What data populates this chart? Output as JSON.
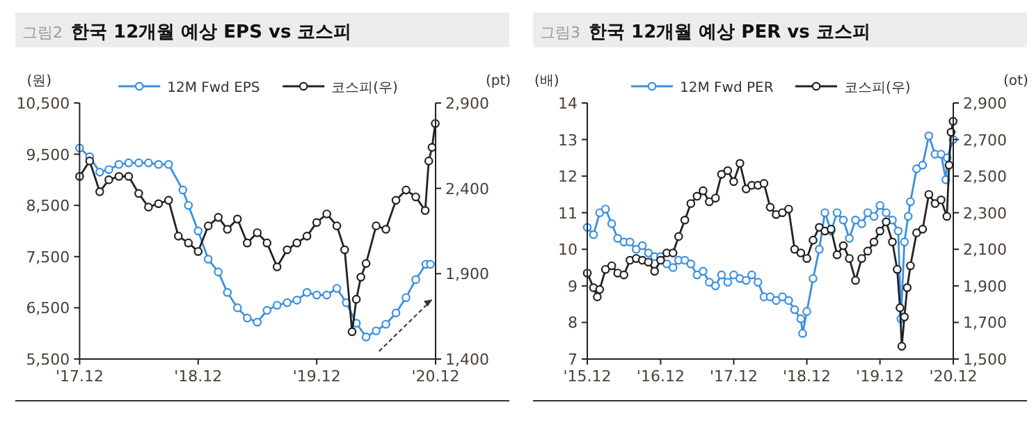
{
  "chart_data": [
    {
      "type": "line",
      "title": "그림2 한국 12개월 예상 EPS vs 코스피",
      "ylabel": "(원)",
      "y2label": "(pt)",
      "legend": "top",
      "marker": "circle",
      "xlim": [
        "2017-12-01",
        "2020-12-01"
      ],
      "xticks": [
        {
          "value": "2017-12-01",
          "label": "'17.12"
        },
        {
          "value": "2018-12-01",
          "label": "'18.12"
        },
        {
          "value": "2019-12-01",
          "label": "'19.12"
        },
        {
          "value": "2020-12-01",
          "label": "'20.12"
        }
      ],
      "ylim": [
        5500,
        10500
      ],
      "yticks": [
        {
          "value": 5500,
          "label": "5,500"
        },
        {
          "value": 6500,
          "label": "6,500"
        },
        {
          "value": 7500,
          "label": "7,500"
        },
        {
          "value": 8500,
          "label": "8,500"
        },
        {
          "value": 9500,
          "label": "9,500"
        },
        {
          "value": 10500,
          "label": "10,500"
        }
      ],
      "y2lim": [
        1400,
        2900
      ],
      "y2ticks": [
        {
          "value": 1400,
          "label": "1,400"
        },
        {
          "value": 1900,
          "label": "1,900"
        },
        {
          "value": 2400,
          "label": "2,400"
        },
        {
          "value": 2900,
          "label": "2,900"
        }
      ],
      "series": [
        {
          "name": "12M Fwd EPS",
          "color": "#3b8fe0",
          "x": [
            "2017-12-01",
            "2018-01-01",
            "2018-02-01",
            "2018-03-01",
            "2018-04-01",
            "2018-05-01",
            "2018-06-01",
            "2018-07-01",
            "2018-08-01",
            "2018-09-01",
            "2018-10-15",
            "2018-11-01",
            "2018-12-01",
            "2019-01-01",
            "2019-02-01",
            "2019-03-01",
            "2019-04-01",
            "2019-05-01",
            "2019-06-01",
            "2019-07-01",
            "2019-08-01",
            "2019-09-01",
            "2019-10-01",
            "2019-11-01",
            "2019-12-01",
            "2020-01-01",
            "2020-02-01",
            "2020-03-01",
            "2020-04-01",
            "2020-05-01",
            "2020-06-01",
            "2020-07-01",
            "2020-08-01",
            "2020-09-01",
            "2020-10-01",
            "2020-11-01",
            "2020-11-15"
          ],
          "values": [
            9620,
            9450,
            9150,
            9200,
            9300,
            9330,
            9330,
            9330,
            9300,
            9300,
            8800,
            8500,
            8000,
            7450,
            7200,
            6800,
            6500,
            6300,
            6220,
            6450,
            6550,
            6600,
            6650,
            6800,
            6750,
            6750,
            6880,
            6600,
            6200,
            5930,
            6050,
            6180,
            6400,
            6700,
            7050,
            7350,
            7350
          ]
        },
        {
          "name": "코스피(우)",
          "color": "#222222",
          "axis": "y2",
          "x": [
            "2017-12-01",
            "2018-01-01",
            "2018-02-01",
            "2018-03-01",
            "2018-04-01",
            "2018-05-01",
            "2018-06-01",
            "2018-07-01",
            "2018-08-01",
            "2018-09-01",
            "2018-10-01",
            "2018-11-01",
            "2018-12-01",
            "2019-01-01",
            "2019-02-01",
            "2019-03-01",
            "2019-04-01",
            "2019-05-01",
            "2019-06-01",
            "2019-07-01",
            "2019-08-01",
            "2019-09-01",
            "2019-10-01",
            "2019-11-01",
            "2019-12-01",
            "2020-01-01",
            "2020-02-01",
            "2020-02-25",
            "2020-03-19",
            "2020-04-01",
            "2020-04-15",
            "2020-05-01",
            "2020-06-01",
            "2020-07-01",
            "2020-08-01",
            "2020-09-01",
            "2020-10-01",
            "2020-10-30",
            "2020-11-10",
            "2020-11-20",
            "2020-11-30"
          ],
          "values": [
            2470,
            2560,
            2380,
            2450,
            2470,
            2470,
            2370,
            2290,
            2310,
            2330,
            2120,
            2080,
            2030,
            2180,
            2230,
            2160,
            2220,
            2080,
            2140,
            2080,
            1940,
            2040,
            2080,
            2120,
            2200,
            2250,
            2180,
            2040,
            1560,
            1750,
            1880,
            1960,
            2180,
            2160,
            2330,
            2390,
            2350,
            2270,
            2560,
            2640,
            2780
          ]
        }
      ]
    },
    {
      "type": "line",
      "title": "그림3 한국 12개월 예상 PER vs 코스피",
      "ylabel": "(배)",
      "y2label": "(ot)",
      "legend": "top",
      "marker": "circle",
      "xlim": [
        "2015-12-01",
        "2020-12-01"
      ],
      "xticks": [
        {
          "value": "2015-12-01",
          "label": "'15.12"
        },
        {
          "value": "2016-12-01",
          "label": "'16.12"
        },
        {
          "value": "2017-12-01",
          "label": "'17.12"
        },
        {
          "value": "2018-12-01",
          "label": "'18.12"
        },
        {
          "value": "2019-12-01",
          "label": "'19.12"
        },
        {
          "value": "2020-12-01",
          "label": "'20.12"
        }
      ],
      "ylim": [
        7,
        14
      ],
      "yticks": [
        7,
        8,
        9,
        10,
        11,
        12,
        13,
        14
      ],
      "y2lim": [
        1500,
        2900
      ],
      "y2ticks": [
        {
          "value": 1500,
          "label": "1,500"
        },
        {
          "value": 1700,
          "label": "1,700"
        },
        {
          "value": 1900,
          "label": "1,900"
        },
        {
          "value": 2100,
          "label": "2,100"
        },
        {
          "value": 2300,
          "label": "2,300"
        },
        {
          "value": 2500,
          "label": "2,500"
        },
        {
          "value": 2700,
          "label": "2,700"
        },
        {
          "value": 2900,
          "label": "2,900"
        }
      ],
      "series": [
        {
          "name": "12M Fwd PER",
          "color": "#3b8fe0",
          "x": [
            "2015-12-01",
            "2016-01-01",
            "2016-02-01",
            "2016-03-01",
            "2016-04-01",
            "2016-05-01",
            "2016-06-01",
            "2016-07-01",
            "2016-08-01",
            "2016-09-01",
            "2016-10-01",
            "2016-11-01",
            "2016-12-01",
            "2017-01-01",
            "2017-02-01",
            "2017-03-01",
            "2017-04-01",
            "2017-05-01",
            "2017-06-01",
            "2017-07-01",
            "2017-08-01",
            "2017-09-01",
            "2017-10-01",
            "2017-11-01",
            "2017-12-01",
            "2018-01-01",
            "2018-02-01",
            "2018-03-01",
            "2018-04-01",
            "2018-05-01",
            "2018-06-01",
            "2018-07-01",
            "2018-08-01",
            "2018-09-01",
            "2018-10-01",
            "2018-11-01",
            "2018-11-10",
            "2018-12-01",
            "2019-01-01",
            "2019-02-01",
            "2019-03-01",
            "2019-04-01",
            "2019-05-01",
            "2019-06-01",
            "2019-07-01",
            "2019-08-01",
            "2019-09-01",
            "2019-10-01",
            "2019-11-01",
            "2019-12-01",
            "2020-01-01",
            "2020-02-01",
            "2020-03-01",
            "2020-03-15",
            "2020-04-01",
            "2020-04-20",
            "2020-05-01",
            "2020-06-01",
            "2020-07-01",
            "2020-08-01",
            "2020-09-01",
            "2020-10-01",
            "2020-10-25",
            "2020-11-01",
            "2020-11-30"
          ],
          "values": [
            10.6,
            10.4,
            11.0,
            11.1,
            10.7,
            10.3,
            10.2,
            10.2,
            10.0,
            10.1,
            9.9,
            9.8,
            9.8,
            9.6,
            9.5,
            9.7,
            9.7,
            9.6,
            9.3,
            9.4,
            9.1,
            9.0,
            9.3,
            9.1,
            9.3,
            9.2,
            9.15,
            9.3,
            9.1,
            8.7,
            8.7,
            8.6,
            8.7,
            8.6,
            8.35,
            8.1,
            7.7,
            8.3,
            9.2,
            10.0,
            11.0,
            10.5,
            11.0,
            10.8,
            10.3,
            10.8,
            10.7,
            11.0,
            10.9,
            11.2,
            11.0,
            10.8,
            10.5,
            8.1,
            10.2,
            10.9,
            11.3,
            12.2,
            12.3,
            13.1,
            12.6,
            12.6,
            11.9,
            12.5,
            13.0
          ]
        },
        {
          "name": "코스피(우)",
          "color": "#222222",
          "axis": "y2",
          "x": [
            "2015-12-01",
            "2016-01-01",
            "2016-01-20",
            "2016-02-01",
            "2016-03-01",
            "2016-04-01",
            "2016-05-01",
            "2016-06-01",
            "2016-07-01",
            "2016-08-01",
            "2016-09-01",
            "2016-10-01",
            "2016-11-01",
            "2016-12-01",
            "2017-01-01",
            "2017-02-01",
            "2017-03-01",
            "2017-04-01",
            "2017-05-01",
            "2017-06-01",
            "2017-07-01",
            "2017-08-01",
            "2017-09-01",
            "2017-10-01",
            "2017-11-01",
            "2017-12-01",
            "2018-01-01",
            "2018-02-01",
            "2018-03-01",
            "2018-04-01",
            "2018-05-01",
            "2018-06-01",
            "2018-07-01",
            "2018-08-01",
            "2018-09-01",
            "2018-10-01",
            "2018-11-01",
            "2018-12-01",
            "2019-01-01",
            "2019-02-01",
            "2019-03-01",
            "2019-04-01",
            "2019-05-01",
            "2019-06-01",
            "2019-07-01",
            "2019-08-01",
            "2019-09-01",
            "2019-10-01",
            "2019-11-01",
            "2019-12-01",
            "2020-01-01",
            "2020-02-01",
            "2020-02-25",
            "2020-03-10",
            "2020-03-19",
            "2020-04-01",
            "2020-04-15",
            "2020-05-01",
            "2020-06-01",
            "2020-07-01",
            "2020-08-01",
            "2020-09-01",
            "2020-10-01",
            "2020-10-30",
            "2020-11-10",
            "2020-11-20",
            "2020-11-30"
          ],
          "values": [
            1970,
            1890,
            1840,
            1880,
            1990,
            2010,
            1970,
            1960,
            2040,
            2050,
            2040,
            2030,
            1980,
            2040,
            2080,
            2080,
            2170,
            2260,
            2350,
            2390,
            2420,
            2360,
            2380,
            2510,
            2530,
            2470,
            2570,
            2430,
            2450,
            2450,
            2460,
            2330,
            2290,
            2300,
            2320,
            2100,
            2080,
            2050,
            2150,
            2220,
            2200,
            2210,
            2070,
            2120,
            2050,
            1930,
            2050,
            2090,
            2140,
            2200,
            2250,
            2140,
            1990,
            1780,
            1570,
            1730,
            1890,
            2010,
            2190,
            2210,
            2400,
            2350,
            2370,
            2280,
            2560,
            2740,
            2800
          ]
        }
      ]
    }
  ]
}
